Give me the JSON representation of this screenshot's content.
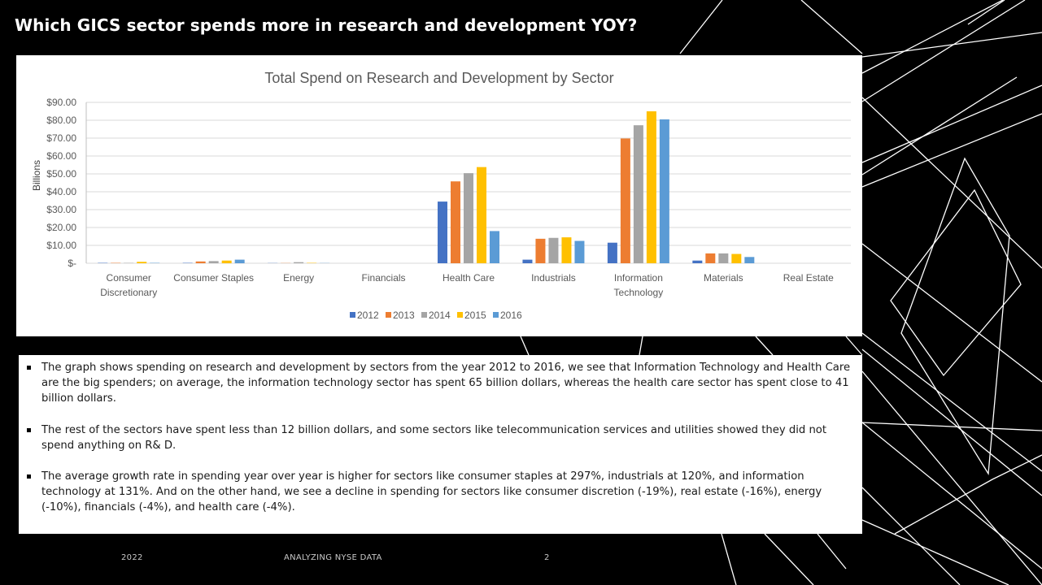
{
  "slide": {
    "title": "Which GICS sector spends more in research and development YOY?",
    "footer": {
      "year": "2022",
      "topic": "ANALYZING NYSE DATA",
      "page": "2"
    }
  },
  "bullets": [
    "The graph shows spending on research and development by sectors from the year 2012 to 2016, we see that Information Technology and Health Care are the big spenders; on average, the information technology sector has spent 65 billion dollars, whereas the health care sector has spent close to 41 billion dollars.",
    "The rest of the sectors have spent less than 12 billion dollars, and some sectors like telecommunication services and utilities showed they did not spend anything on R& D.",
    "The average growth rate in spending year over year is higher for sectors like consumer staples at 297%, industrials at 120%, and information technology at 131%. And on the other hand, we see a decline in spending for sectors like consumer discretion (-19%), real estate (-16%), energy (-10%), financials (-4%), and health care (-4%)."
  ],
  "colors": {
    "2012": "#4472C4",
    "2013": "#ED7D31",
    "2014": "#A5A5A5",
    "2015": "#FFC000",
    "2016": "#5B9BD5"
  },
  "chart_data": {
    "type": "bar",
    "title": "Total Spend on Research and Development by Sector",
    "ylabel": "Billions",
    "xlabel": "",
    "ylim": [
      0,
      90
    ],
    "yticks": [
      0,
      10,
      20,
      30,
      40,
      50,
      60,
      70,
      80,
      90
    ],
    "ytick_labels": [
      "$-",
      "$10.00",
      "$20.00",
      "$30.00",
      "$40.00",
      "$50.00",
      "$60.00",
      "$70.00",
      "$80.00",
      "$90.00"
    ],
    "grid": true,
    "legend_position": "bottom",
    "categories": [
      [
        "Consumer",
        "Discretionary"
      ],
      [
        "Consumer Staples"
      ],
      [
        "Energy"
      ],
      [
        "Financials"
      ],
      [
        "Health Care"
      ],
      [
        "Industrials"
      ],
      [
        "Information",
        "Technology"
      ],
      [
        "Materials"
      ],
      [
        "Real Estate"
      ]
    ],
    "series": [
      {
        "name": "2012",
        "values": [
          0.2,
          0.2,
          0.1,
          0,
          34.5,
          2,
          11.5,
          1.5,
          0
        ]
      },
      {
        "name": "2013",
        "values": [
          0.2,
          1,
          0.1,
          0,
          45.8,
          13.7,
          69.8,
          5.5,
          0
        ]
      },
      {
        "name": "2014",
        "values": [
          0.2,
          1.2,
          0.6,
          0,
          50.4,
          14.2,
          77.2,
          5.5,
          0
        ]
      },
      {
        "name": "2015",
        "values": [
          0.8,
          1.5,
          0.2,
          0,
          53.8,
          14.5,
          85,
          5.2,
          0
        ]
      },
      {
        "name": "2016",
        "values": [
          0.2,
          2,
          0.1,
          0,
          18,
          12.5,
          80.5,
          3.5,
          0
        ]
      }
    ]
  }
}
